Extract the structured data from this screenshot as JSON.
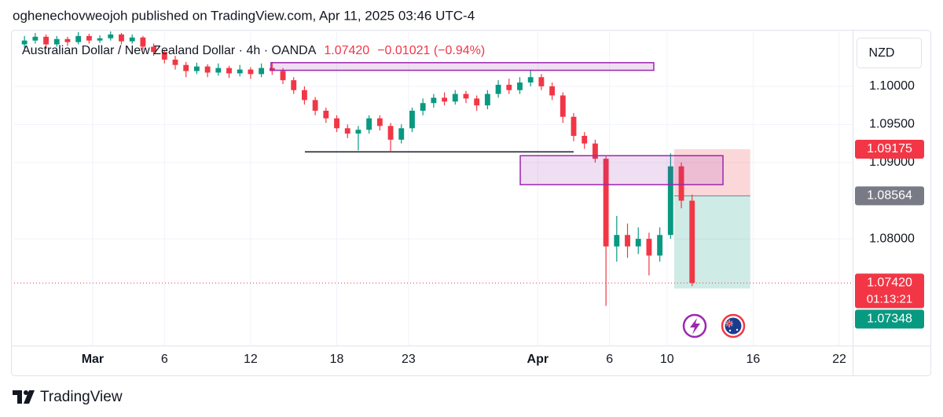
{
  "header": {
    "publisher": "oghenechovweojoh published on TradingView.com, Apr 11, 2025 03:46 UTC-4"
  },
  "footer": {
    "brand": "TradingView"
  },
  "chart_data": {
    "type": "candlestick",
    "title": "Australian Dollar / New Zealand Dollar · 4h · OANDA",
    "last_price": {
      "value": 1.0742,
      "label": "1.07420"
    },
    "change": "−0.01021 (−0.94%)",
    "currency": "NZD",
    "timer": "01:13:21",
    "up_color": "#089981",
    "down_color": "#f23645",
    "grid": true,
    "xlim": [
      -5.47,
      52.93
    ],
    "ylim": [
      1.066,
      1.1072
    ],
    "xticks": [
      {
        "value": 0,
        "label": "Mar"
      },
      {
        "value": 5,
        "label": "6"
      },
      {
        "value": 11,
        "label": "12"
      },
      {
        "value": 17,
        "label": "18"
      },
      {
        "value": 22,
        "label": "23"
      },
      {
        "value": 31,
        "label": "Apr"
      },
      {
        "value": 36,
        "label": "6"
      },
      {
        "value": 40,
        "label": "10"
      },
      {
        "value": 46,
        "label": "16"
      },
      {
        "value": 52,
        "label": "22"
      }
    ],
    "yticks": [
      {
        "value": 1.1,
        "label": "1.10000"
      },
      {
        "value": 1.095,
        "label": "1.09500"
      },
      {
        "value": 1.09,
        "label": "1.09000"
      },
      {
        "value": 1.08,
        "label": "1.08000"
      }
    ],
    "x": [
      -4.75,
      -4.0,
      -3.25,
      -2.5,
      -1.75,
      -1.0,
      -0.25,
      0.5,
      1.25,
      2.0,
      2.75,
      3.5,
      4.25,
      5.0,
      5.75,
      6.5,
      7.25,
      8.0,
      8.75,
      9.5,
      10.25,
      11.0,
      11.75,
      12.5,
      13.25,
      14.0,
      14.75,
      15.5,
      16.25,
      17.0,
      17.75,
      18.5,
      19.25,
      20.0,
      20.75,
      21.5,
      22.25,
      23.0,
      23.75,
      24.5,
      25.25,
      26.0,
      26.75,
      27.5,
      28.25,
      29.0,
      29.75,
      30.5,
      31.25,
      32.0,
      32.75,
      33.5,
      34.25,
      35.0,
      35.75,
      36.5,
      37.25,
      38.0,
      38.75,
      39.5,
      40.25,
      41.0,
      41.75
    ],
    "ohlc": [
      [
        1.1055,
        1.1066,
        1.105,
        1.106
      ],
      [
        1.106,
        1.107,
        1.1056,
        1.1065
      ],
      [
        1.1065,
        1.1068,
        1.105,
        1.1055
      ],
      [
        1.1055,
        1.1066,
        1.1052,
        1.1062
      ],
      [
        1.1062,
        1.1065,
        1.1053,
        1.1058
      ],
      [
        1.1058,
        1.1071,
        1.1055,
        1.1066
      ],
      [
        1.1066,
        1.1069,
        1.1056,
        1.106
      ],
      [
        1.106,
        1.1067,
        1.1057,
        1.1063
      ],
      [
        1.1063,
        1.1072,
        1.106,
        1.1068
      ],
      [
        1.1068,
        1.107,
        1.1055,
        1.1059
      ],
      [
        1.1059,
        1.1068,
        1.1056,
        1.1064
      ],
      [
        1.1064,
        1.1066,
        1.1048,
        1.1052
      ],
      [
        1.1052,
        1.1056,
        1.104,
        1.1045
      ],
      [
        1.1045,
        1.1048,
        1.103,
        1.1035
      ],
      [
        1.1035,
        1.104,
        1.1022,
        1.1028
      ],
      [
        1.1028,
        1.1032,
        1.1012,
        1.102
      ],
      [
        1.102,
        1.1031,
        1.1016,
        1.1026
      ],
      [
        1.1026,
        1.1029,
        1.1012,
        1.1018
      ],
      [
        1.1018,
        1.103,
        1.1014,
        1.1024
      ],
      [
        1.1024,
        1.1027,
        1.1011,
        1.1017
      ],
      [
        1.1017,
        1.1028,
        1.1013,
        1.1022
      ],
      [
        1.1022,
        1.1025,
        1.101,
        1.1016
      ],
      [
        1.1016,
        1.103,
        1.1012,
        1.1024
      ],
      [
        1.1024,
        1.1032,
        1.1015,
        1.102
      ],
      [
        1.102,
        1.1024,
        1.1003,
        1.1008
      ],
      [
        1.1008,
        1.1012,
        1.099,
        1.0995
      ],
      [
        1.0995,
        1.1,
        1.0976,
        1.0982
      ],
      [
        1.0982,
        1.0986,
        1.0962,
        1.0968
      ],
      [
        1.0968,
        1.0972,
        1.0952,
        1.0958
      ],
      [
        1.0958,
        1.0962,
        1.094,
        1.0945
      ],
      [
        1.0945,
        1.095,
        1.0932,
        1.0938
      ],
      [
        1.0938,
        1.0948,
        1.0916,
        1.0943
      ],
      [
        1.0943,
        1.0962,
        1.0938,
        1.0958
      ],
      [
        1.0958,
        1.0962,
        1.0942,
        1.0948
      ],
      [
        1.0948,
        1.0952,
        1.0914,
        1.093
      ],
      [
        1.093,
        1.095,
        1.0925,
        1.0945
      ],
      [
        1.0945,
        1.0972,
        1.094,
        1.0968
      ],
      [
        1.0968,
        1.0984,
        1.0962,
        1.0978
      ],
      [
        1.0978,
        1.099,
        1.0972,
        1.0985
      ],
      [
        1.0985,
        1.0992,
        1.0975,
        1.098
      ],
      [
        1.098,
        1.0995,
        1.0976,
        1.099
      ],
      [
        1.099,
        1.0994,
        1.0978,
        1.0984
      ],
      [
        1.0984,
        1.0988,
        1.0968,
        1.0975
      ],
      [
        1.0975,
        1.0995,
        1.097,
        1.099
      ],
      [
        1.099,
        1.1008,
        1.0985,
        1.1002
      ],
      [
        1.1002,
        1.101,
        1.099,
        1.0995
      ],
      [
        1.0995,
        1.1012,
        1.099,
        1.1005
      ],
      [
        1.1005,
        1.1022,
        1.1,
        1.1012
      ],
      [
        1.1012,
        1.1016,
        1.0995,
        1.1
      ],
      [
        1.1,
        1.1005,
        1.0982,
        1.0988
      ],
      [
        1.0988,
        1.0992,
        1.0952,
        1.096
      ],
      [
        1.096,
        1.0965,
        1.0928,
        1.0935
      ],
      [
        1.0935,
        1.094,
        1.0918,
        1.0925
      ],
      [
        1.0925,
        1.093,
        1.09,
        1.0905
      ],
      [
        1.0905,
        1.0908,
        1.0712,
        1.079
      ],
      [
        1.079,
        1.083,
        1.077,
        1.0805
      ],
      [
        1.0805,
        1.082,
        1.0775,
        1.079
      ],
      [
        1.079,
        1.0815,
        1.078,
        1.08
      ],
      [
        1.08,
        1.0808,
        1.0752,
        1.0778
      ],
      [
        1.0778,
        1.0815,
        1.077,
        1.0805
      ],
      [
        1.0805,
        1.0912,
        1.08,
        1.0895
      ],
      [
        1.0895,
        1.09,
        1.084,
        1.085
      ],
      [
        1.085,
        1.0858,
        1.0738,
        1.0742
      ]
    ],
    "zones": [
      {
        "x": [
          12.42,
          39.08
        ],
        "y": [
          1.1021,
          1.1031
        ],
        "color": "#9c27b0"
      },
      {
        "x": [
          29.78,
          43.9
        ],
        "y": [
          1.0871,
          1.0909
        ],
        "color": "#9c27b0"
      }
    ],
    "level": {
      "x": [
        14.78,
        33.5
      ],
      "y": 1.0914,
      "color": "#131722"
    },
    "position": {
      "x": [
        40.5,
        45.8
      ],
      "stop": 1.09175,
      "entry": 1.08564,
      "target": 1.07348,
      "stop_color": "#f23645",
      "entry_color": "#787b86",
      "target_color": "#089981"
    }
  }
}
